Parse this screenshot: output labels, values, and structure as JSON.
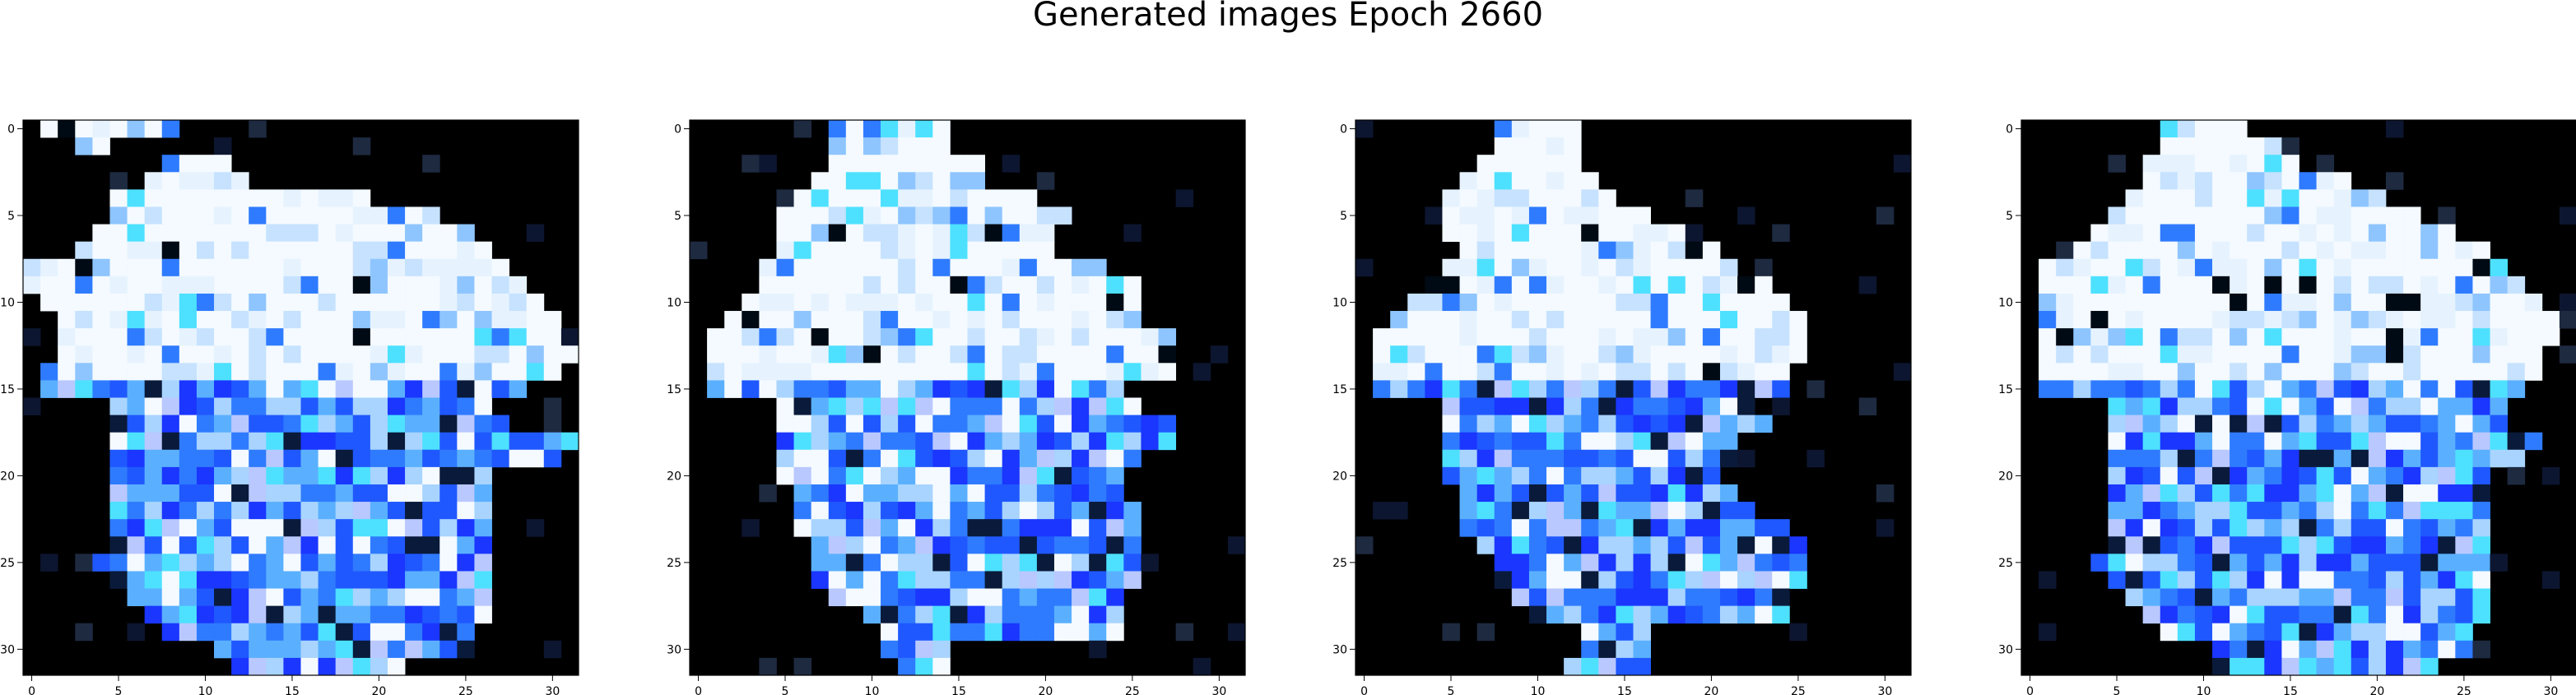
{
  "title": "Generated images Epoch 2660",
  "chart_data": [
    {
      "type": "heatmap",
      "panel": 1,
      "grid_size": [
        32,
        32
      ],
      "xticks": [
        0,
        5,
        10,
        15,
        20,
        25,
        30
      ],
      "yticks": [
        0,
        5,
        10,
        15,
        20,
        25,
        30
      ],
      "xlim": [
        -0.5,
        31.5
      ],
      "ylim": [
        31.5,
        -0.5
      ],
      "background_color": "#000000",
      "dominant_colors": [
        "#e8f4ff",
        "#a8d4ff",
        "#2f7bff",
        "#1a1aff",
        "#000000"
      ]
    },
    {
      "type": "heatmap",
      "panel": 2,
      "grid_size": [
        32,
        32
      ],
      "xticks": [
        0,
        5,
        10,
        15,
        20,
        25,
        30
      ],
      "yticks": [
        0,
        5,
        10,
        15,
        20,
        25,
        30
      ],
      "xlim": [
        -0.5,
        31.5
      ],
      "ylim": [
        31.5,
        -0.5
      ],
      "background_color": "#000000",
      "dominant_colors": [
        "#e8f4ff",
        "#a8d4ff",
        "#2f7bff",
        "#1a1aff",
        "#000000"
      ]
    },
    {
      "type": "heatmap",
      "panel": 3,
      "grid_size": [
        32,
        32
      ],
      "xticks": [
        0,
        5,
        10,
        15,
        20,
        25,
        30
      ],
      "yticks": [
        0,
        5,
        10,
        15,
        20,
        25,
        30
      ],
      "xlim": [
        -0.5,
        31.5
      ],
      "ylim": [
        31.5,
        -0.5
      ],
      "background_color": "#000000",
      "dominant_colors": [
        "#e8f4ff",
        "#a8d4ff",
        "#2f7bff",
        "#1a1aff",
        "#000000"
      ]
    },
    {
      "type": "heatmap",
      "panel": 4,
      "grid_size": [
        32,
        32
      ],
      "xticks": [
        0,
        5,
        10,
        15,
        20,
        25,
        30
      ],
      "yticks": [
        0,
        5,
        10,
        15,
        20,
        25,
        30
      ],
      "xlim": [
        -0.5,
        31.5
      ],
      "ylim": [
        31.5,
        -0.5
      ],
      "background_color": "#000000",
      "dominant_colors": [
        "#e8f4ff",
        "#a8d4ff",
        "#2f7bff",
        "#1a1aff",
        "#000000"
      ]
    }
  ]
}
